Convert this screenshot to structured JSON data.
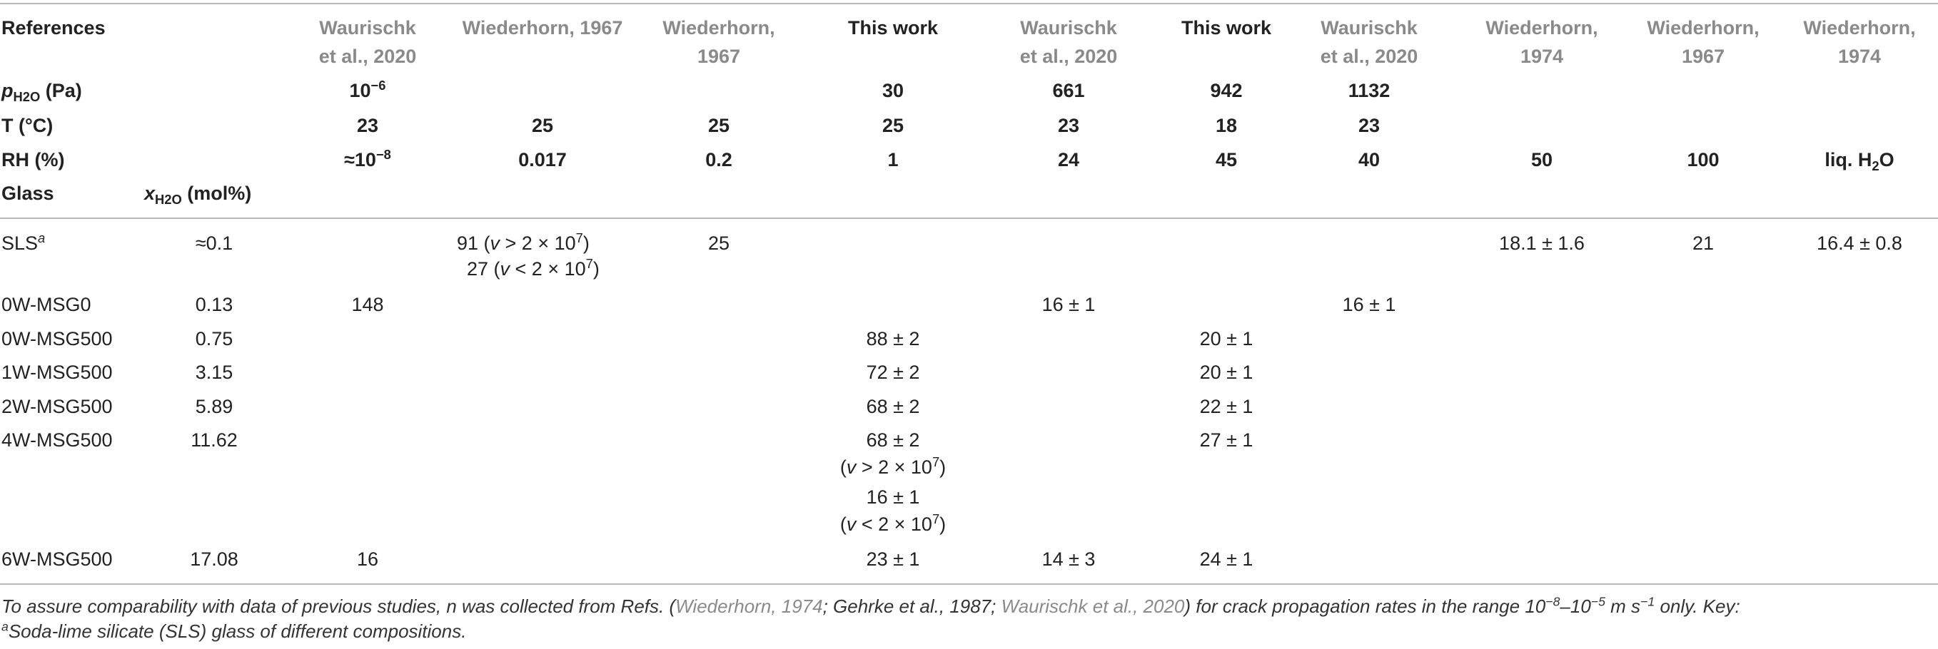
{
  "header": {
    "references_label": "References",
    "p_label_main": "p",
    "p_label_sub": "H2O",
    "p_label_unit": " (Pa)",
    "t_label": "T (°C)",
    "rh_label": "RH (%)",
    "glass_label": "Glass",
    "x_label_main": "x",
    "x_label_sub": "H2O",
    "x_label_unit": " (mol%)",
    "columns": [
      {
        "ref1": "Waurischk",
        "ref2": "et al., 2020",
        "p_base": "10",
        "p_exp": "−6",
        "t": "23",
        "rh": "≈10",
        "rh_exp": "−8"
      },
      {
        "ref1": "Wiederhorn, 1967",
        "ref2": "",
        "p_base": "",
        "p_exp": "",
        "t": "25",
        "rh": "0.017",
        "rh_exp": ""
      },
      {
        "ref1": "Wiederhorn,",
        "ref2": "1967",
        "p_base": "",
        "p_exp": "",
        "t": "25",
        "rh": "0.2",
        "rh_exp": ""
      },
      {
        "ref1": "This work",
        "ref2": "",
        "p_base": "30",
        "p_exp": "",
        "t": "25",
        "rh": "1",
        "rh_exp": ""
      },
      {
        "ref1": "Waurischk",
        "ref2": "et al., 2020",
        "p_base": "661",
        "p_exp": "",
        "t": "23",
        "rh": "24",
        "rh_exp": ""
      },
      {
        "ref1": "This work",
        "ref2": "",
        "p_base": "942",
        "p_exp": "",
        "t": "18",
        "rh": "45",
        "rh_exp": ""
      },
      {
        "ref1": "Waurischk",
        "ref2": "et al., 2020",
        "p_base": "1132",
        "p_exp": "",
        "t": "23",
        "rh": "40",
        "rh_exp": ""
      },
      {
        "ref1": "Wiederhorn,",
        "ref2": "1974",
        "p_base": "",
        "p_exp": "",
        "t": "",
        "rh": "50",
        "rh_exp": ""
      },
      {
        "ref1": "Wiederhorn,",
        "ref2": "1967",
        "p_base": "",
        "p_exp": "",
        "t": "",
        "rh": "100",
        "rh_exp": ""
      },
      {
        "ref1": "Wiederhorn,",
        "ref2": "1974",
        "p_base": "",
        "p_exp": "",
        "t": "",
        "rh": "liq. H",
        "rh_exp": ""
      }
    ],
    "liq_sub": "2",
    "liq_tail": "O"
  },
  "rows": [
    {
      "glass": "SLS",
      "glass_sup": "a",
      "x": "≈0.1"
    },
    {
      "glass": "0W-MSG0",
      "glass_sup": "",
      "x": "0.13"
    },
    {
      "glass": "0W-MSG500",
      "glass_sup": "",
      "x": "0.75"
    },
    {
      "glass": "1W-MSG500",
      "glass_sup": "",
      "x": "3.15"
    },
    {
      "glass": "2W-MSG500",
      "glass_sup": "",
      "x": "5.89"
    },
    {
      "glass": "4W-MSG500",
      "glass_sup": "",
      "x": "11.62"
    },
    {
      "glass": "6W-MSG500",
      "glass_sup": "",
      "x": "17.08"
    }
  ],
  "values": {
    "sls_wied67a_1": "91 (",
    "sls_wied67a_1_tail": " > 2 × 10",
    "sls_wied67a_2": "27 (",
    "sls_wied67a_2_tail": " < 2 × 10",
    "v_symbol": "v",
    "exp7": "7",
    "close_paren": ")",
    "sls_wied67b": "25",
    "sls_wied74a": "18.1 ± 1.6",
    "sls_wied67c": "21",
    "sls_wied74b": "16.4 ± 0.8",
    "msg0_waur1": "148",
    "msg0_waur2": "16 ± 1",
    "msg0_waur3": "16 ± 1",
    "w0_this1": "88 ± 2",
    "w0_this2": "20 ± 1",
    "w1_this1": "72 ± 2",
    "w1_this2": "20 ± 1",
    "w2_this1": "68 ± 2",
    "w2_this2": "22 ± 1",
    "w4_this1": "68 ± 2",
    "w4_this1_cond_open": "(",
    "w4_this1_cond_tail": " > 2 × 10",
    "w4_this1b": "16 ± 1",
    "w4_this1b_cond_open": "(",
    "w4_this1b_cond_tail": " < 2 × 10",
    "w4_this2": "27 ± 1",
    "w6_waur1": "16",
    "w6_this1": "23 ± 1",
    "w6_waur2": "14 ± 3",
    "w6_this2": "24 ± 1"
  },
  "footnote": {
    "line1_a": "To assure comparability with data of previous studies, n was collected from Refs. (",
    "ref_a": "Wiederhorn, 1974",
    "sep1": "; ",
    "ref_b": "Gehrke et al., 1987",
    "sep2": "; ",
    "ref_c": "Waurischk et al., 2020",
    "line1_b": ") for crack propagation rates in the range 10",
    "exp_a": "−8",
    "dash": "–10",
    "exp_b": "−5",
    "unit": " m s",
    "exp_c": "−1",
    "line1_c": " only. Key:",
    "line2_sup": "a",
    "line2": "Soda-lime silicate (SLS) glass of different compositions."
  }
}
